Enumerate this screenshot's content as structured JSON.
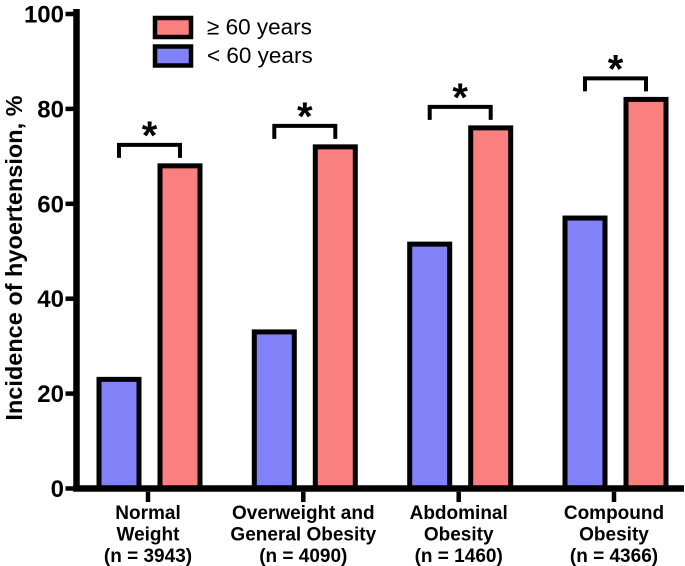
{
  "chart_data": {
    "type": "bar",
    "title": "",
    "xlabel": "",
    "ylabel": "Incidence of hyoertension, %",
    "ylim": [
      0,
      100
    ],
    "yticks": [
      0,
      20,
      40,
      60,
      80,
      100
    ],
    "grid": false,
    "legend_position": "top-left-inside",
    "background_color": "#ffffff",
    "axis_color": "#000000",
    "bar_border_color": "#000000",
    "categories": [
      {
        "id": "normal-weight",
        "lines": [
          "Normal",
          "Weight",
          "(n = 3943)"
        ]
      },
      {
        "id": "overweight-general-obesity",
        "lines": [
          "Overweight and",
          "General Obesity",
          "(n = 4090)"
        ]
      },
      {
        "id": "abdominal-obesity",
        "lines": [
          "Abdominal",
          "Obesity",
          "(n = 1460)"
        ]
      },
      {
        "id": "compound-obesity",
        "lines": [
          "Compound",
          "Obesity",
          "(n = 4366)"
        ]
      }
    ],
    "series": [
      {
        "id": "ge60",
        "name": "≥ 60 years",
        "color": "#FA8080",
        "bar_position": "right",
        "values": [
          68,
          72,
          76,
          82
        ]
      },
      {
        "id": "lt60",
        "name": "< 60 years",
        "color": "#8181F8",
        "bar_position": "left",
        "values": [
          23,
          33,
          51.5,
          57
        ]
      }
    ],
    "significance": {
      "symbol": "*",
      "compared_groups": [
        "normal-weight",
        "overweight-general-obesity",
        "abdominal-obesity",
        "compound-obesity"
      ]
    }
  }
}
